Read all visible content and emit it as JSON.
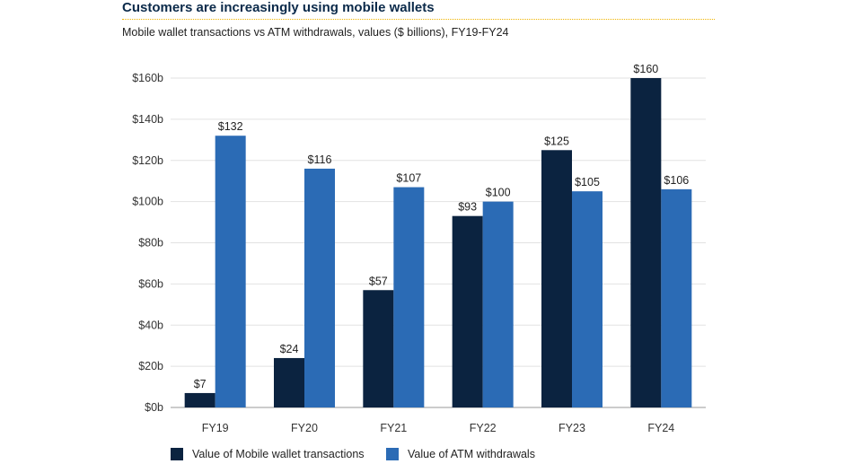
{
  "title": "Customers are increasingly using mobile wallets",
  "subtitle": "Mobile wallet transactions vs ATM withdrawals, values ($ billions), FY19-FY24",
  "colors": {
    "mobile": "#0b2340",
    "atm": "#2b6bb5",
    "grid": "#e2e2e2",
    "axis": "#9a9a9a"
  },
  "chart_data": {
    "type": "bar",
    "title": "Customers are increasingly using mobile wallets",
    "subtitle": "Mobile wallet transactions vs ATM withdrawals, values ($ billions), FY19-FY24",
    "xlabel": "",
    "ylabel": "",
    "categories": [
      "FY19",
      "FY20",
      "FY21",
      "FY22",
      "FY23",
      "FY24"
    ],
    "series": [
      {
        "name": "Value of Mobile wallet transactions",
        "values": [
          7,
          24,
          57,
          93,
          125,
          160
        ],
        "color": "#0b2340",
        "labels": [
          "$7",
          "$24",
          "$57",
          "$93",
          "$125",
          "$160"
        ]
      },
      {
        "name": "Value of ATM withdrawals",
        "values": [
          132,
          116,
          107,
          100,
          105,
          106
        ],
        "color": "#2b6bb5",
        "labels": [
          "$132",
          "$116",
          "$107",
          "$100",
          "$105",
          "$106"
        ]
      }
    ],
    "ylim": [
      0,
      160
    ],
    "yticks": [
      0,
      20,
      40,
      60,
      80,
      100,
      120,
      140,
      160
    ],
    "ytick_labels": [
      "$0b",
      "$20b",
      "$40b",
      "$60b",
      "$80b",
      "$100b",
      "$120b",
      "$140b",
      "$160b"
    ],
    "grid": true,
    "legend": "bottom"
  }
}
